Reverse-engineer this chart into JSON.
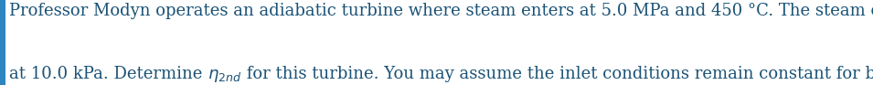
{
  "line1": "Professor Modyn operates an adiabatic turbine where steam enters at 5.0 MPa and 450 °C. The steam exits as a saturated vapor",
  "line2_pre": "at 10.0 kPa. Determine ",
  "line2_eta": "$\\eta_{2nd}$",
  "line2_post": " for this turbine. You may assume the inlet conditions remain constant for both processes.",
  "text_color": "#1a5276",
  "font_size": 13.0,
  "background_color": "#ffffff",
  "left_bar_color": "#2e86c1"
}
